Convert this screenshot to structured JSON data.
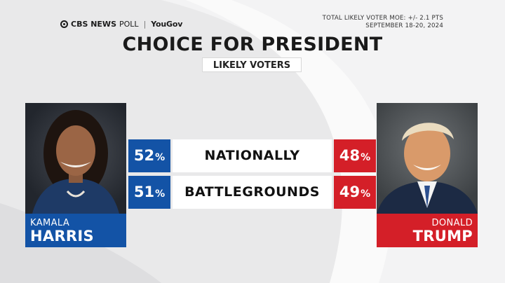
{
  "header": {
    "brand_main": "CBS NEWS",
    "brand_poll": "POLL",
    "brand_partner": "YouGov",
    "moe_line": "TOTAL LIKELY VOTER MOE: +/- 2.1 PTS",
    "date_line": "SEPTEMBER 18-20, 2024"
  },
  "colors": {
    "harris_blue": "#1353a6",
    "trump_red": "#d41f28"
  },
  "candidates": {
    "left": {
      "first": "KAMALA",
      "last": "HARRIS",
      "photo": "harris-portrait"
    },
    "right": {
      "first": "DONALD",
      "last": "TRUMP",
      "photo": "trump-portrait"
    }
  },
  "chart_data": {
    "type": "table",
    "title": "CHOICE FOR PRESIDENT",
    "subtitle": "LIKELY VOTERS",
    "categories": [
      "NATIONALLY",
      "BATTLEGROUNDS"
    ],
    "series": [
      {
        "name": "KAMALA HARRIS",
        "values": [
          52,
          51
        ],
        "display": [
          "52",
          "51"
        ],
        "unit": "%"
      },
      {
        "name": "DONALD TRUMP",
        "values": [
          48,
          49
        ],
        "display": [
          "48",
          "49"
        ],
        "unit": "%"
      }
    ]
  }
}
